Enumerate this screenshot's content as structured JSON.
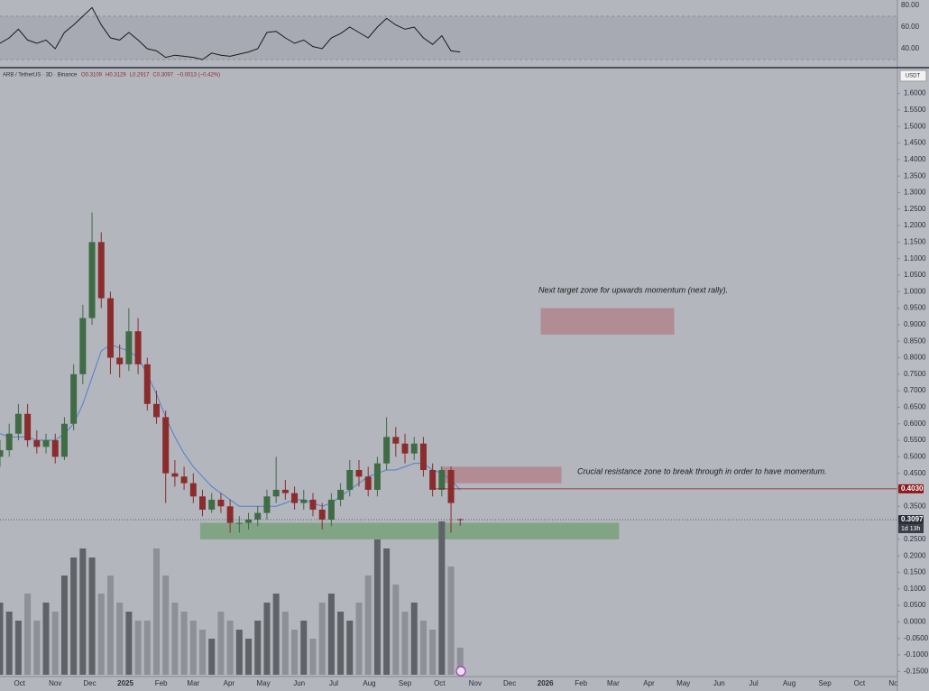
{
  "chart_data": {
    "type": "candlestick",
    "legend_text": "ARB / TetherUS · 3D · Binance",
    "ohlc_text": [
      "O0.3109",
      "H0.3129",
      "L0.2917",
      "C0.3097",
      "−0.0013 (−0.42%)"
    ],
    "currency": "USDT",
    "countdown": "1d 13h",
    "annotations": [
      "Next target zone for upwards momentum (next rally).",
      "Crucial resistance zone to break through in order to have momentum."
    ],
    "x": [
      0,
      8,
      16,
      24,
      32,
      40,
      48,
      56,
      64,
      72,
      80,
      88,
      96,
      104,
      112,
      120,
      128,
      136,
      144,
      152,
      160,
      168,
      176,
      184,
      192,
      200,
      208,
      216,
      224,
      232,
      240,
      248,
      256,
      264,
      272,
      280,
      288,
      296,
      304,
      312,
      320,
      328,
      336,
      344,
      352,
      360,
      368,
      376,
      384,
      392,
      400
    ],
    "open": [
      0.5,
      0.52,
      0.57,
      0.63,
      0.55,
      0.53,
      0.55,
      0.5,
      0.6,
      0.75,
      0.92,
      1.15,
      0.98,
      0.8,
      0.78,
      0.88,
      0.78,
      0.66,
      0.62,
      0.45,
      0.44,
      0.42,
      0.38,
      0.34,
      0.37,
      0.35,
      0.3,
      0.3,
      0.31,
      0.33,
      0.38,
      0.4,
      0.39,
      0.36,
      0.37,
      0.34,
      0.31,
      0.37,
      0.4,
      0.46,
      0.44,
      0.4,
      0.48,
      0.56,
      0.54,
      0.51,
      0.54,
      0.46,
      0.4,
      0.46,
      0.3109
    ],
    "high": [
      0.55,
      0.6,
      0.66,
      0.66,
      0.58,
      0.57,
      0.57,
      0.62,
      0.78,
      0.96,
      1.24,
      1.18,
      1.0,
      0.84,
      0.95,
      0.92,
      0.8,
      0.7,
      0.64,
      0.49,
      0.47,
      0.45,
      0.4,
      0.39,
      0.39,
      0.37,
      0.32,
      0.33,
      0.35,
      0.4,
      0.5,
      0.43,
      0.41,
      0.4,
      0.39,
      0.36,
      0.39,
      0.42,
      0.49,
      0.49,
      0.47,
      0.5,
      0.62,
      0.59,
      0.57,
      0.56,
      0.56,
      0.48,
      0.47,
      0.47,
      0.3129
    ],
    "low": [
      0.47,
      0.5,
      0.55,
      0.53,
      0.51,
      0.51,
      0.48,
      0.49,
      0.58,
      0.72,
      0.9,
      0.95,
      0.75,
      0.74,
      0.76,
      0.75,
      0.64,
      0.6,
      0.36,
      0.41,
      0.4,
      0.36,
      0.32,
      0.33,
      0.33,
      0.27,
      0.27,
      0.28,
      0.29,
      0.31,
      0.36,
      0.37,
      0.34,
      0.34,
      0.32,
      0.28,
      0.29,
      0.35,
      0.38,
      0.41,
      0.38,
      0.38,
      0.46,
      0.5,
      0.48,
      0.49,
      0.44,
      0.38,
      0.38,
      0.27,
      0.2917
    ],
    "close": [
      0.52,
      0.57,
      0.63,
      0.55,
      0.53,
      0.55,
      0.5,
      0.6,
      0.75,
      0.92,
      1.15,
      0.98,
      0.8,
      0.78,
      0.88,
      0.78,
      0.66,
      0.62,
      0.45,
      0.44,
      0.42,
      0.38,
      0.34,
      0.37,
      0.35,
      0.3,
      0.3,
      0.31,
      0.33,
      0.38,
      0.4,
      0.39,
      0.36,
      0.37,
      0.34,
      0.31,
      0.37,
      0.4,
      0.46,
      0.44,
      0.4,
      0.48,
      0.56,
      0.54,
      0.51,
      0.54,
      0.46,
      0.4,
      0.46,
      0.36,
      0.3097
    ],
    "ma": [
      0.57,
      0.56,
      0.56,
      0.56,
      0.55,
      0.55,
      0.55,
      0.57,
      0.6,
      0.66,
      0.74,
      0.82,
      0.84,
      0.83,
      0.82,
      0.8,
      0.75,
      0.69,
      0.62,
      0.56,
      0.51,
      0.47,
      0.44,
      0.41,
      0.39,
      0.37,
      0.35,
      0.35,
      0.35,
      0.35,
      0.35,
      0.36,
      0.37,
      0.37,
      0.36,
      0.35,
      0.36,
      0.38,
      0.4,
      0.42,
      0.44,
      0.45,
      0.46,
      0.46,
      0.47,
      0.48,
      0.48,
      0.46,
      0.45,
      0.43,
      0.4
    ],
    "volume": [
      40,
      35,
      30,
      45,
      30,
      40,
      35,
      55,
      65,
      70,
      65,
      45,
      55,
      40,
      35,
      30,
      30,
      70,
      55,
      40,
      35,
      30,
      25,
      20,
      35,
      30,
      25,
      20,
      30,
      40,
      45,
      35,
      25,
      30,
      20,
      40,
      45,
      35,
      30,
      40,
      55,
      75,
      70,
      50,
      35,
      40,
      30,
      25,
      85,
      60,
      15
    ],
    "rsi": [
      45,
      50,
      58,
      48,
      45,
      48,
      40,
      55,
      62,
      70,
      78,
      62,
      50,
      48,
      55,
      48,
      40,
      38,
      32,
      34,
      33,
      32,
      30,
      36,
      34,
      33,
      35,
      37,
      40,
      55,
      56,
      50,
      45,
      48,
      42,
      40,
      50,
      54,
      60,
      55,
      50,
      60,
      68,
      62,
      58,
      60,
      50,
      44,
      52,
      38,
      37
    ],
    "up_color": "#3f6b45",
    "down_color": "#8a2c2c",
    "ma_color": "#4f7fd0",
    "rsi_color": "#1a1a1a",
    "xlim": [
      0,
      780
    ],
    "xticks": [
      {
        "value": 17,
        "label": "Oct"
      },
      {
        "value": 48,
        "label": "Nov"
      },
      {
        "value": 78,
        "label": "Dec"
      },
      {
        "value": 109,
        "label": "2025"
      },
      {
        "value": 140,
        "label": "Feb"
      },
      {
        "value": 168,
        "label": "Mar"
      },
      {
        "value": 199,
        "label": "Apr"
      },
      {
        "value": 229,
        "label": "May"
      },
      {
        "value": 260,
        "label": "Jun"
      },
      {
        "value": 290,
        "label": "Jul"
      },
      {
        "value": 321,
        "label": "Aug"
      },
      {
        "value": 352,
        "label": "Sep"
      },
      {
        "value": 382,
        "label": "Oct"
      },
      {
        "value": 413,
        "label": "Nov"
      },
      {
        "value": 443,
        "label": "Dec"
      },
      {
        "value": 474,
        "label": "2026"
      },
      {
        "value": 505,
        "label": "Feb"
      },
      {
        "value": 533,
        "label": "Mar"
      },
      {
        "value": 564,
        "label": "Apr"
      },
      {
        "value": 594,
        "label": "May"
      },
      {
        "value": 625,
        "label": "Jun"
      },
      {
        "value": 655,
        "label": "Jul"
      },
      {
        "value": 686,
        "label": "Aug"
      },
      {
        "value": 717,
        "label": "Sep"
      },
      {
        "value": 747,
        "label": "Oct"
      },
      {
        "value": 778,
        "label": "Nov"
      }
    ],
    "ylim": [
      -0.16,
      1.67
    ],
    "yticks": [
      {
        "value": 1.6,
        "label": "1.6000"
      },
      {
        "value": 1.55,
        "label": "1.5500"
      },
      {
        "value": 1.5,
        "label": "1.5000"
      },
      {
        "value": 1.45,
        "label": "1.4500"
      },
      {
        "value": 1.4,
        "label": "1.4000"
      },
      {
        "value": 1.35,
        "label": "1.3500"
      },
      {
        "value": 1.3,
        "label": "1.3000"
      },
      {
        "value": 1.25,
        "label": "1.2500"
      },
      {
        "value": 1.2,
        "label": "1.2000"
      },
      {
        "value": 1.15,
        "label": "1.1500"
      },
      {
        "value": 1.1,
        "label": "1.1000"
      },
      {
        "value": 1.05,
        "label": "1.0500"
      },
      {
        "value": 1,
        "label": "1.0000"
      },
      {
        "value": 0.95,
        "label": "0.9500"
      },
      {
        "value": 0.9,
        "label": "0.9000"
      },
      {
        "value": 0.85,
        "label": "0.8500"
      },
      {
        "value": 0.8,
        "label": "0.8000"
      },
      {
        "value": 0.75,
        "label": "0.7500"
      },
      {
        "value": 0.7,
        "label": "0.7000"
      },
      {
        "value": 0.65,
        "label": "0.6500"
      },
      {
        "value": 0.6,
        "label": "0.6000"
      },
      {
        "value": 0.55,
        "label": "0.5500"
      },
      {
        "value": 0.5,
        "label": "0.5000"
      },
      {
        "value": 0.45,
        "label": "0.4500"
      },
      {
        "value": 0.35,
        "label": "0.3500"
      },
      {
        "value": 0.25,
        "label": "0.2500"
      },
      {
        "value": 0.2,
        "label": "0.2000"
      },
      {
        "value": 0.15,
        "label": "0.1500"
      },
      {
        "value": 0.1,
        "label": "0.1000"
      },
      {
        "value": 0.05,
        "label": "0.0500"
      },
      {
        "value": 0,
        "label": "0.0000"
      },
      {
        "value": -0.05,
        "label": "-0.0500"
      },
      {
        "value": -0.1,
        "label": "-0.1000"
      },
      {
        "value": -0.15,
        "label": "-0.1500"
      }
    ],
    "rsi_ylim": [
      22.5,
      85
    ],
    "rsi_yticks": [
      {
        "value": 80,
        "label": "80.00"
      },
      {
        "value": 60,
        "label": "60.00"
      },
      {
        "value": 40,
        "label": "40.00"
      }
    ],
    "rsi_band": [
      30,
      70
    ],
    "zones": [
      {
        "low": 0.25,
        "high": 0.3,
        "start": 174,
        "end": 538,
        "color": "#6f9e72"
      },
      {
        "low": 0.42,
        "high": 0.47,
        "start": 383,
        "end": 488,
        "color": "#b07d85"
      },
      {
        "low": 0.87,
        "high": 0.95,
        "start": 470,
        "end": 586,
        "color": "#b07d85"
      }
    ],
    "price_lines": [
      {
        "value": 0.403,
        "label": "0.4030",
        "color": "#8b1a1a"
      },
      {
        "value": 0.3097,
        "label": "0.3097",
        "color": "#2a2e39"
      }
    ]
  }
}
